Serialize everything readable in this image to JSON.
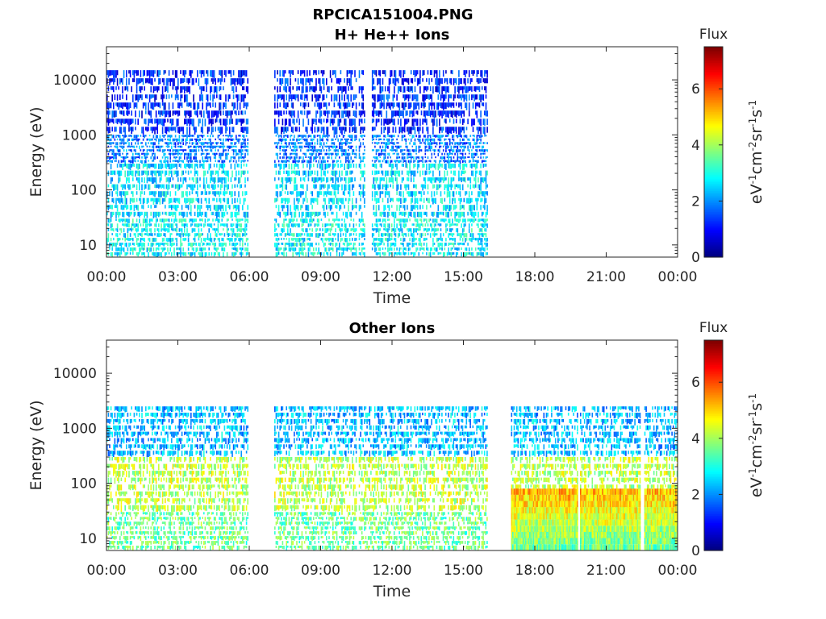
{
  "figure": {
    "title": "RPCICA151004.PNG"
  },
  "chart_data": [
    {
      "type": "heatmap",
      "title": "H+ He++ Ions",
      "xlabel": "Time",
      "ylabel": "Energy (eV)",
      "yscale": "log",
      "ylim": [
        6,
        40000
      ],
      "xlim_hours": [
        0,
        24
      ],
      "x_tick_labels": [
        "00:00",
        "03:00",
        "06:00",
        "09:00",
        "12:00",
        "15:00",
        "18:00",
        "21:00",
        "00:00"
      ],
      "y_tick_values": [
        10,
        100,
        1000,
        10000
      ],
      "y_tick_labels": [
        "10",
        "100",
        "1000",
        "10000"
      ],
      "colorbar": {
        "title": "Flux",
        "label": "eV-1cm-2sr-1s-1",
        "range": [
          0,
          7.5
        ],
        "ticks": [
          "0",
          "2",
          "4",
          "6"
        ],
        "colormap": "jet"
      },
      "data_intervals_hours": [
        [
          0,
          5.95
        ],
        [
          7.05,
          10.5
        ],
        [
          10.6,
          10.85
        ],
        [
          11.15,
          16
        ]
      ],
      "energy_band_flux": [
        {
          "energy_range": [
            6,
            30
          ],
          "flux": 2.8
        },
        {
          "energy_range": [
            30,
            300
          ],
          "flux": 2.6
        },
        {
          "energy_range": [
            300,
            1000
          ],
          "flux": 1.8
        },
        {
          "energy_range": [
            1000,
            15000
          ],
          "flux": 1.2
        }
      ]
    },
    {
      "type": "heatmap",
      "title": "Other Ions",
      "xlabel": "Time",
      "ylabel": "Energy (eV)",
      "yscale": "log",
      "ylim": [
        6,
        40000
      ],
      "xlim_hours": [
        0,
        24
      ],
      "x_tick_labels": [
        "00:00",
        "03:00",
        "06:00",
        "09:00",
        "12:00",
        "15:00",
        "18:00",
        "21:00",
        "00:00"
      ],
      "y_tick_values": [
        10,
        100,
        1000,
        10000
      ],
      "y_tick_labels": [
        "10",
        "100",
        "1000",
        "10000"
      ],
      "colorbar": {
        "title": "Flux",
        "label": "eV-1cm-2sr-1s-1",
        "range": [
          0,
          7.5
        ],
        "ticks": [
          "0",
          "2",
          "4",
          "6"
        ],
        "colormap": "jet"
      },
      "data_intervals_hours": [
        [
          0,
          5.95
        ],
        [
          7.05,
          10.5
        ],
        [
          10.6,
          16
        ],
        [
          17,
          19.8
        ],
        [
          19.9,
          22.4
        ],
        [
          22.6,
          24
        ]
      ],
      "energy_band_flux": [
        {
          "energy_range": [
            6,
            30
          ],
          "flux": 3.6
        },
        {
          "energy_range": [
            30,
            300
          ],
          "flux": 4.2
        },
        {
          "energy_range": [
            300,
            2500
          ],
          "flux": 2.3
        }
      ],
      "low_energy_mode": {
        "time_range_hours": [
          17,
          24
        ],
        "energy_max": 80,
        "flux": 5.2
      }
    }
  ]
}
